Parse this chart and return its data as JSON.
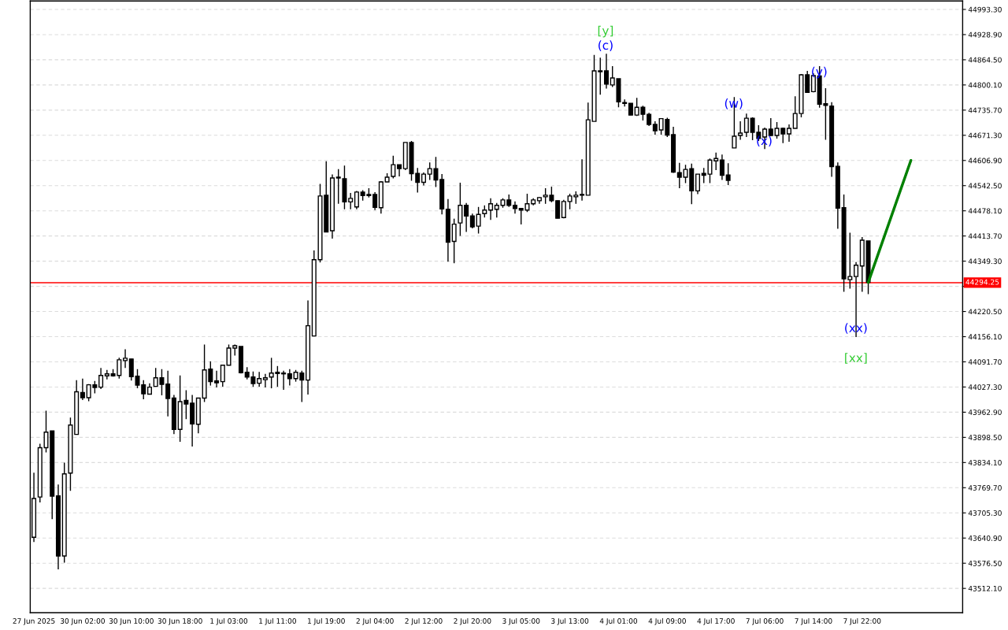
{
  "chart_data": {
    "type": "candlestick",
    "categories": [
      "27 Jun 2025",
      null,
      null,
      null,
      null,
      null,
      null,
      null,
      "30 Jun 02:00",
      null,
      null,
      null,
      null,
      null,
      null,
      null,
      "30 Jun 10:00",
      null,
      null,
      null,
      null,
      null,
      null,
      null,
      "30 Jun 18:00",
      null,
      null,
      null,
      null,
      null,
      null,
      null,
      "1 Jul 03:00",
      null,
      null,
      null,
      null,
      null,
      null,
      null,
      "1 Jul 11:00",
      null,
      null,
      null,
      null,
      null,
      null,
      null,
      "1 Jul 19:00",
      null,
      null,
      null,
      null,
      null,
      null,
      null,
      "2 Jul 04:00",
      null,
      null,
      null,
      null,
      null,
      null,
      null,
      "2 Jul 12:00",
      null,
      null,
      null,
      null,
      null,
      null,
      null,
      "2 Jul 20:00",
      null,
      null,
      null,
      null,
      null,
      null,
      null,
      "3 Jul 05:00",
      null,
      null,
      null,
      null,
      null,
      null,
      null,
      "3 Jul 13:00",
      null,
      null,
      null,
      null,
      null,
      null,
      null,
      "4 Jul 01:00",
      null,
      null,
      null,
      null,
      null,
      null,
      null,
      "4 Jul 09:00",
      null,
      null,
      null,
      null,
      null,
      null,
      null,
      "4 Jul 17:00",
      null,
      null,
      null,
      null,
      null,
      null,
      null,
      "7 Jul 06:00",
      null,
      null,
      null,
      null,
      null,
      null,
      null,
      "7 Jul 14:00",
      null,
      null,
      null,
      null,
      null,
      null,
      null,
      "7 Jul 22:00",
      null,
      null,
      null,
      null,
      null,
      null,
      null,
      null,
      null,
      null,
      null,
      null,
      null,
      null,
      null,
      null
    ],
    "ohlc": [
      [
        43643,
        43808,
        43631,
        43742
      ],
      [
        43746,
        43882,
        43732,
        43872
      ],
      [
        43872,
        43967,
        43860,
        43912
      ],
      [
        43915,
        43915,
        43689,
        43748
      ],
      [
        43749,
        43778,
        43561,
        43595
      ],
      [
        43595,
        43834,
        43578,
        43805
      ],
      [
        43807,
        43949,
        43762,
        43930
      ],
      [
        43906,
        44045,
        43906,
        44015
      ],
      [
        44013,
        44049,
        43994,
        44000
      ],
      [
        44000,
        44035,
        43991,
        44033
      ],
      [
        44033,
        44043,
        44011,
        44026
      ],
      [
        44027,
        44076,
        44022,
        44057
      ],
      [
        44056,
        44071,
        44047,
        44061
      ],
      [
        44061,
        44073,
        44054,
        44056
      ],
      [
        44057,
        44102,
        44049,
        44097
      ],
      [
        44095,
        44124,
        44076,
        44101
      ],
      [
        44099,
        44099,
        44044,
        44054
      ],
      [
        44055,
        44073,
        44024,
        44032
      ],
      [
        44033,
        44045,
        43996,
        44010
      ],
      [
        44009,
        44037,
        44009,
        44027
      ],
      [
        44029,
        44076,
        44029,
        44051
      ],
      [
        44051,
        44073,
        44006,
        44034
      ],
      [
        44035,
        44069,
        43952,
        43998
      ],
      [
        43999,
        44007,
        43907,
        43919
      ],
      [
        43919,
        44057,
        43887,
        43990
      ],
      [
        43993,
        44019,
        43945,
        43984
      ],
      [
        43986,
        44007,
        43875,
        43933
      ],
      [
        43932,
        43999,
        43909,
        43999
      ],
      [
        43999,
        44136,
        43989,
        44071
      ],
      [
        44073,
        44093,
        44031,
        44041
      ],
      [
        44043,
        44069,
        44026,
        44038
      ],
      [
        44041,
        44083,
        44028,
        44083
      ],
      [
        44083,
        44136,
        44083,
        44127
      ],
      [
        44127,
        44136,
        44108,
        44133
      ],
      [
        44131,
        44131,
        44062,
        44064
      ],
      [
        44065,
        44078,
        44047,
        44053
      ],
      [
        44053,
        44067,
        44028,
        44036
      ],
      [
        44037,
        44066,
        44028,
        44049
      ],
      [
        44046,
        44061,
        44026,
        44051
      ],
      [
        44053,
        44102,
        44024,
        44063
      ],
      [
        44065,
        44081,
        44028,
        44062
      ],
      [
        44063,
        44069,
        44020,
        44061
      ],
      [
        44061,
        44073,
        44031,
        44049
      ],
      [
        44049,
        44071,
        44041,
        44065
      ],
      [
        44063,
        44069,
        43989,
        44045
      ],
      [
        44045,
        44249,
        44008,
        44184
      ],
      [
        44158,
        44377,
        44158,
        44353
      ],
      [
        44353,
        44547,
        44346,
        44516
      ],
      [
        44518,
        44605,
        44424,
        44424
      ],
      [
        44427,
        44571,
        44407,
        44562
      ],
      [
        44562,
        44585,
        44496,
        44564
      ],
      [
        44560,
        44594,
        44482,
        44501
      ],
      [
        44501,
        44524,
        44482,
        44510
      ],
      [
        44488,
        44529,
        44482,
        44526
      ],
      [
        44526,
        44531,
        44504,
        44517
      ],
      [
        44520,
        44536,
        44512,
        44517
      ],
      [
        44520,
        44526,
        44480,
        44487
      ],
      [
        44486,
        44554,
        44471,
        44552
      ],
      [
        44552,
        44574,
        44552,
        44564
      ],
      [
        44566,
        44619,
        44561,
        44596
      ],
      [
        44596,
        44596,
        44566,
        44586
      ],
      [
        44586,
        44653,
        44582,
        44653
      ],
      [
        44653,
        44657,
        44555,
        44573
      ],
      [
        44574,
        44588,
        44525,
        44551
      ],
      [
        44551,
        44576,
        44543,
        44572
      ],
      [
        44572,
        44602,
        44557,
        44586
      ],
      [
        44586,
        44616,
        44539,
        44557
      ],
      [
        44558,
        44572,
        44469,
        44483
      ],
      [
        44482,
        44508,
        44348,
        44398
      ],
      [
        44400,
        44458,
        44344,
        44444
      ],
      [
        44447,
        44550,
        44414,
        44492
      ],
      [
        44492,
        44498,
        44424,
        44465
      ],
      [
        44465,
        44471,
        44433,
        44437
      ],
      [
        44439,
        44488,
        44420,
        44469
      ],
      [
        44471,
        44492,
        44461,
        44480
      ],
      [
        44480,
        44510,
        44455,
        44496
      ],
      [
        44482,
        44498,
        44461,
        44492
      ],
      [
        44492,
        44510,
        44486,
        44506
      ],
      [
        44506,
        44520,
        44488,
        44492
      ],
      [
        44492,
        44502,
        44471,
        44484
      ],
      [
        44484,
        44484,
        44443,
        44480
      ],
      [
        44480,
        44522,
        44475,
        44496
      ],
      [
        44496,
        44510,
        44492,
        44506
      ],
      [
        44504,
        44514,
        44496,
        44512
      ],
      [
        44514,
        44536,
        44496,
        44518
      ],
      [
        44518,
        44540,
        44500,
        44504
      ],
      [
        44504,
        44504,
        44459,
        44459
      ],
      [
        44461,
        44506,
        44459,
        44502
      ],
      [
        44502,
        44522,
        44482,
        44516
      ],
      [
        44514,
        44528,
        44496,
        44518
      ],
      [
        44518,
        44610,
        44504,
        44520
      ],
      [
        44518,
        44755,
        44518,
        44711
      ],
      [
        44707,
        44877,
        44707,
        44836
      ],
      [
        44834,
        44870,
        44775,
        44836
      ],
      [
        44836,
        44880,
        44791,
        44802
      ],
      [
        44800,
        44848,
        44795,
        44818
      ],
      [
        44816,
        44816,
        44743,
        44757
      ],
      [
        44755,
        44763,
        44745,
        44753
      ],
      [
        44753,
        44753,
        44723,
        44723
      ],
      [
        44723,
        44767,
        44721,
        44743
      ],
      [
        44743,
        44747,
        44709,
        44725
      ],
      [
        44725,
        44729,
        44695,
        44699
      ],
      [
        44699,
        44707,
        44673,
        44683
      ],
      [
        44685,
        44714,
        44673,
        44714
      ],
      [
        44712,
        44716,
        44667,
        44672
      ],
      [
        44673,
        44693,
        44575,
        44577
      ],
      [
        44576,
        44601,
        44536,
        44564
      ],
      [
        44564,
        44596,
        44549,
        44584
      ],
      [
        44586,
        44599,
        44495,
        44529
      ],
      [
        44529,
        44572,
        44521,
        44572
      ],
      [
        44574,
        44588,
        44549,
        44569
      ],
      [
        44572,
        44612,
        44549,
        44608
      ],
      [
        44606,
        44627,
        44582,
        44612
      ],
      [
        44608,
        44622,
        44557,
        44569
      ],
      [
        44570,
        44600,
        44544,
        44556
      ],
      [
        44639,
        44769,
        44639,
        44669
      ],
      [
        44671,
        44707,
        44660,
        44677
      ],
      [
        44679,
        44727,
        44667,
        44715
      ],
      [
        44715,
        44717,
        44659,
        44679
      ],
      [
        44679,
        44697,
        44657,
        44663
      ],
      [
        44667,
        44691,
        44636,
        44687
      ],
      [
        44687,
        44715,
        44669,
        44671
      ],
      [
        44671,
        44705,
        44663,
        44689
      ],
      [
        44689,
        44691,
        44651,
        44675
      ],
      [
        44675,
        44699,
        44655,
        44689
      ],
      [
        44689,
        44771,
        44689,
        44727
      ],
      [
        44727,
        44828,
        44717,
        44826
      ],
      [
        44826,
        44836,
        44781,
        44781
      ],
      [
        44783,
        44830,
        44781,
        44824
      ],
      [
        44823,
        44848,
        44742,
        44751
      ],
      [
        44752,
        44792,
        44660,
        44748
      ],
      [
        44746,
        44756,
        44565,
        44591
      ],
      [
        44592,
        44602,
        44432,
        44485
      ],
      [
        44486,
        44520,
        44271,
        44304
      ],
      [
        44302,
        44422,
        44279,
        44310
      ],
      [
        44310,
        44347,
        44155,
        44339
      ],
      [
        44337,
        44411,
        44271,
        44403
      ],
      [
        44401,
        44401,
        44265,
        44295
      ],
      null,
      null,
      null,
      null,
      null,
      null,
      null,
      null,
      null,
      null,
      null,
      null,
      null,
      null,
      null
    ],
    "series": [
      {
        "type": "line",
        "values": [
          null,
          null,
          null,
          null,
          null,
          null,
          null,
          null,
          null,
          null,
          null,
          null,
          null,
          null,
          null,
          null,
          null,
          null,
          null,
          null,
          null,
          null,
          null,
          null,
          null,
          null,
          null,
          null,
          null,
          null,
          null,
          null,
          null,
          null,
          null,
          null,
          null,
          null,
          null,
          null,
          null,
          null,
          null,
          null,
          null,
          null,
          null,
          null,
          null,
          null,
          null,
          null,
          null,
          null,
          null,
          null,
          null,
          null,
          null,
          null,
          null,
          null,
          null,
          null,
          null,
          null,
          null,
          null,
          null,
          null,
          null,
          null,
          null,
          null,
          null,
          null,
          null,
          null,
          null,
          null,
          null,
          null,
          null,
          null,
          null,
          null,
          null,
          null,
          null,
          null,
          null,
          null,
          null,
          null,
          null,
          null,
          null,
          null,
          null,
          null,
          null,
          null,
          null,
          null,
          null,
          null,
          null,
          null,
          null,
          null,
          null,
          null,
          null,
          null,
          null,
          null,
          null,
          null,
          null,
          null,
          null,
          null,
          null,
          null,
          null,
          null,
          null,
          null,
          null,
          null,
          null,
          null,
          null,
          null,
          null,
          null,
          null,
          44295,
          null,
          null,
          null,
          null,
          null,
          null,
          44607,
          null,
          null,
          null,
          null,
          null,
          null,
          null,
          null
        ],
        "color": "#008000"
      }
    ],
    "ylim": [
      43450,
      45015
    ],
    "yticks": [
      {
        "value": 44993.3,
        "label": "44993.30"
      },
      {
        "value": 44928.9,
        "label": "44928.90"
      },
      {
        "value": 44864.5,
        "label": "44864.50"
      },
      {
        "value": 44800.1,
        "label": "44800.10"
      },
      {
        "value": 44735.7,
        "label": "44735.70"
      },
      {
        "value": 44671.3,
        "label": "44671.30"
      },
      {
        "value": 44606.9,
        "label": "44606.90"
      },
      {
        "value": 44542.5,
        "label": "44542.50"
      },
      {
        "value": 44478.1,
        "label": "44478.10"
      },
      {
        "value": 44413.7,
        "label": "44413.70"
      },
      {
        "value": 44349.3,
        "label": "44349.30"
      },
      {
        "value": 44284.9,
        "label": null
      },
      {
        "value": 44220.5,
        "label": "44220.50"
      },
      {
        "value": 44156.1,
        "label": "44156.10"
      },
      {
        "value": 44091.7,
        "label": "44091.70"
      },
      {
        "value": 44027.3,
        "label": "44027.30"
      },
      {
        "value": 43962.9,
        "label": "43962.90"
      },
      {
        "value": 43898.5,
        "label": "43898.50"
      },
      {
        "value": 43834.1,
        "label": "43834.10"
      },
      {
        "value": 43769.7,
        "label": "43769.70"
      },
      {
        "value": 43705.3,
        "label": "43705.30"
      },
      {
        "value": 43640.9,
        "label": "43640.90"
      },
      {
        "value": 43576.5,
        "label": "43576.50"
      },
      {
        "value": 43512.1,
        "label": "43512.10"
      }
    ],
    "ref_lines": [
      {
        "axis": "y",
        "value": 44294.25,
        "label": "44294.25",
        "color": "#ff0000"
      }
    ],
    "annotations": [
      "[y]",
      "(c)",
      "(w)",
      "(x)",
      "(y)",
      "(xx)",
      "[xx]"
    ],
    "grid": true
  }
}
